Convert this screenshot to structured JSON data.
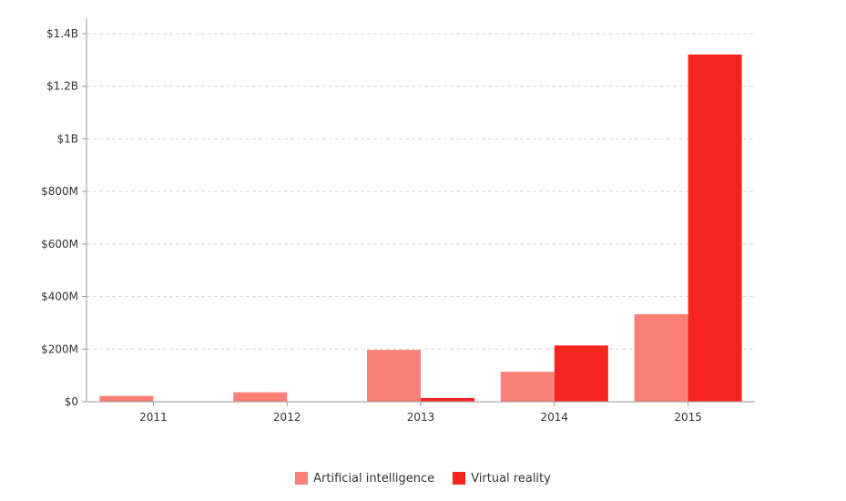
{
  "chart_data": {
    "type": "bar",
    "title": "",
    "xlabel": "",
    "ylabel": "",
    "categories": [
      "2011",
      "2012",
      "2013",
      "2014",
      "2015"
    ],
    "series": [
      {
        "name": "Artificial intelligence",
        "color": "#fa8078",
        "values": [
          22,
          36,
          197,
          114,
          333
        ]
      },
      {
        "name": "Virtual reality",
        "color": "#f5241e",
        "values": [
          0,
          0,
          14,
          214,
          1321
        ]
      }
    ],
    "ylim": [
      0,
      1400
    ],
    "y_ticks": [
      0,
      200,
      400,
      600,
      800,
      1000,
      1200,
      1400
    ],
    "y_tick_labels": [
      "$0",
      "$200M",
      "$400M",
      "$600M",
      "$800M",
      "$1B",
      "$1.2B",
      "$1.4B"
    ],
    "grid": true,
    "legend_position": "bottom"
  }
}
